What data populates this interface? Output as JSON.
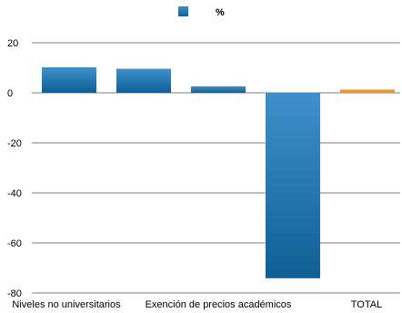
{
  "chart_data": {
    "type": "bar",
    "categories": [
      "Niveles no universitarios",
      "",
      "Exención de precios académicos",
      "",
      "TOTAL"
    ],
    "x_tick_labels": [
      "Niveles no universitarios",
      "Exención de precios académicos",
      "TOTAL"
    ],
    "series": [
      {
        "name": "%",
        "values": [
          10.2,
          9.6,
          2.6,
          -74.1,
          1.3
        ]
      }
    ],
    "legend": {
      "label": "%",
      "position": "top"
    },
    "ylim": [
      -80,
      20
    ],
    "y_ticks": [
      20,
      0,
      -20,
      -40,
      -60,
      -80
    ],
    "grid": true,
    "colors": {
      "bar_top": "#3f8fcb",
      "bar_bottom": "#0f5f96",
      "highlight_bar": "#f7941d",
      "grid": "#000000"
    },
    "highlight_index": 4
  }
}
